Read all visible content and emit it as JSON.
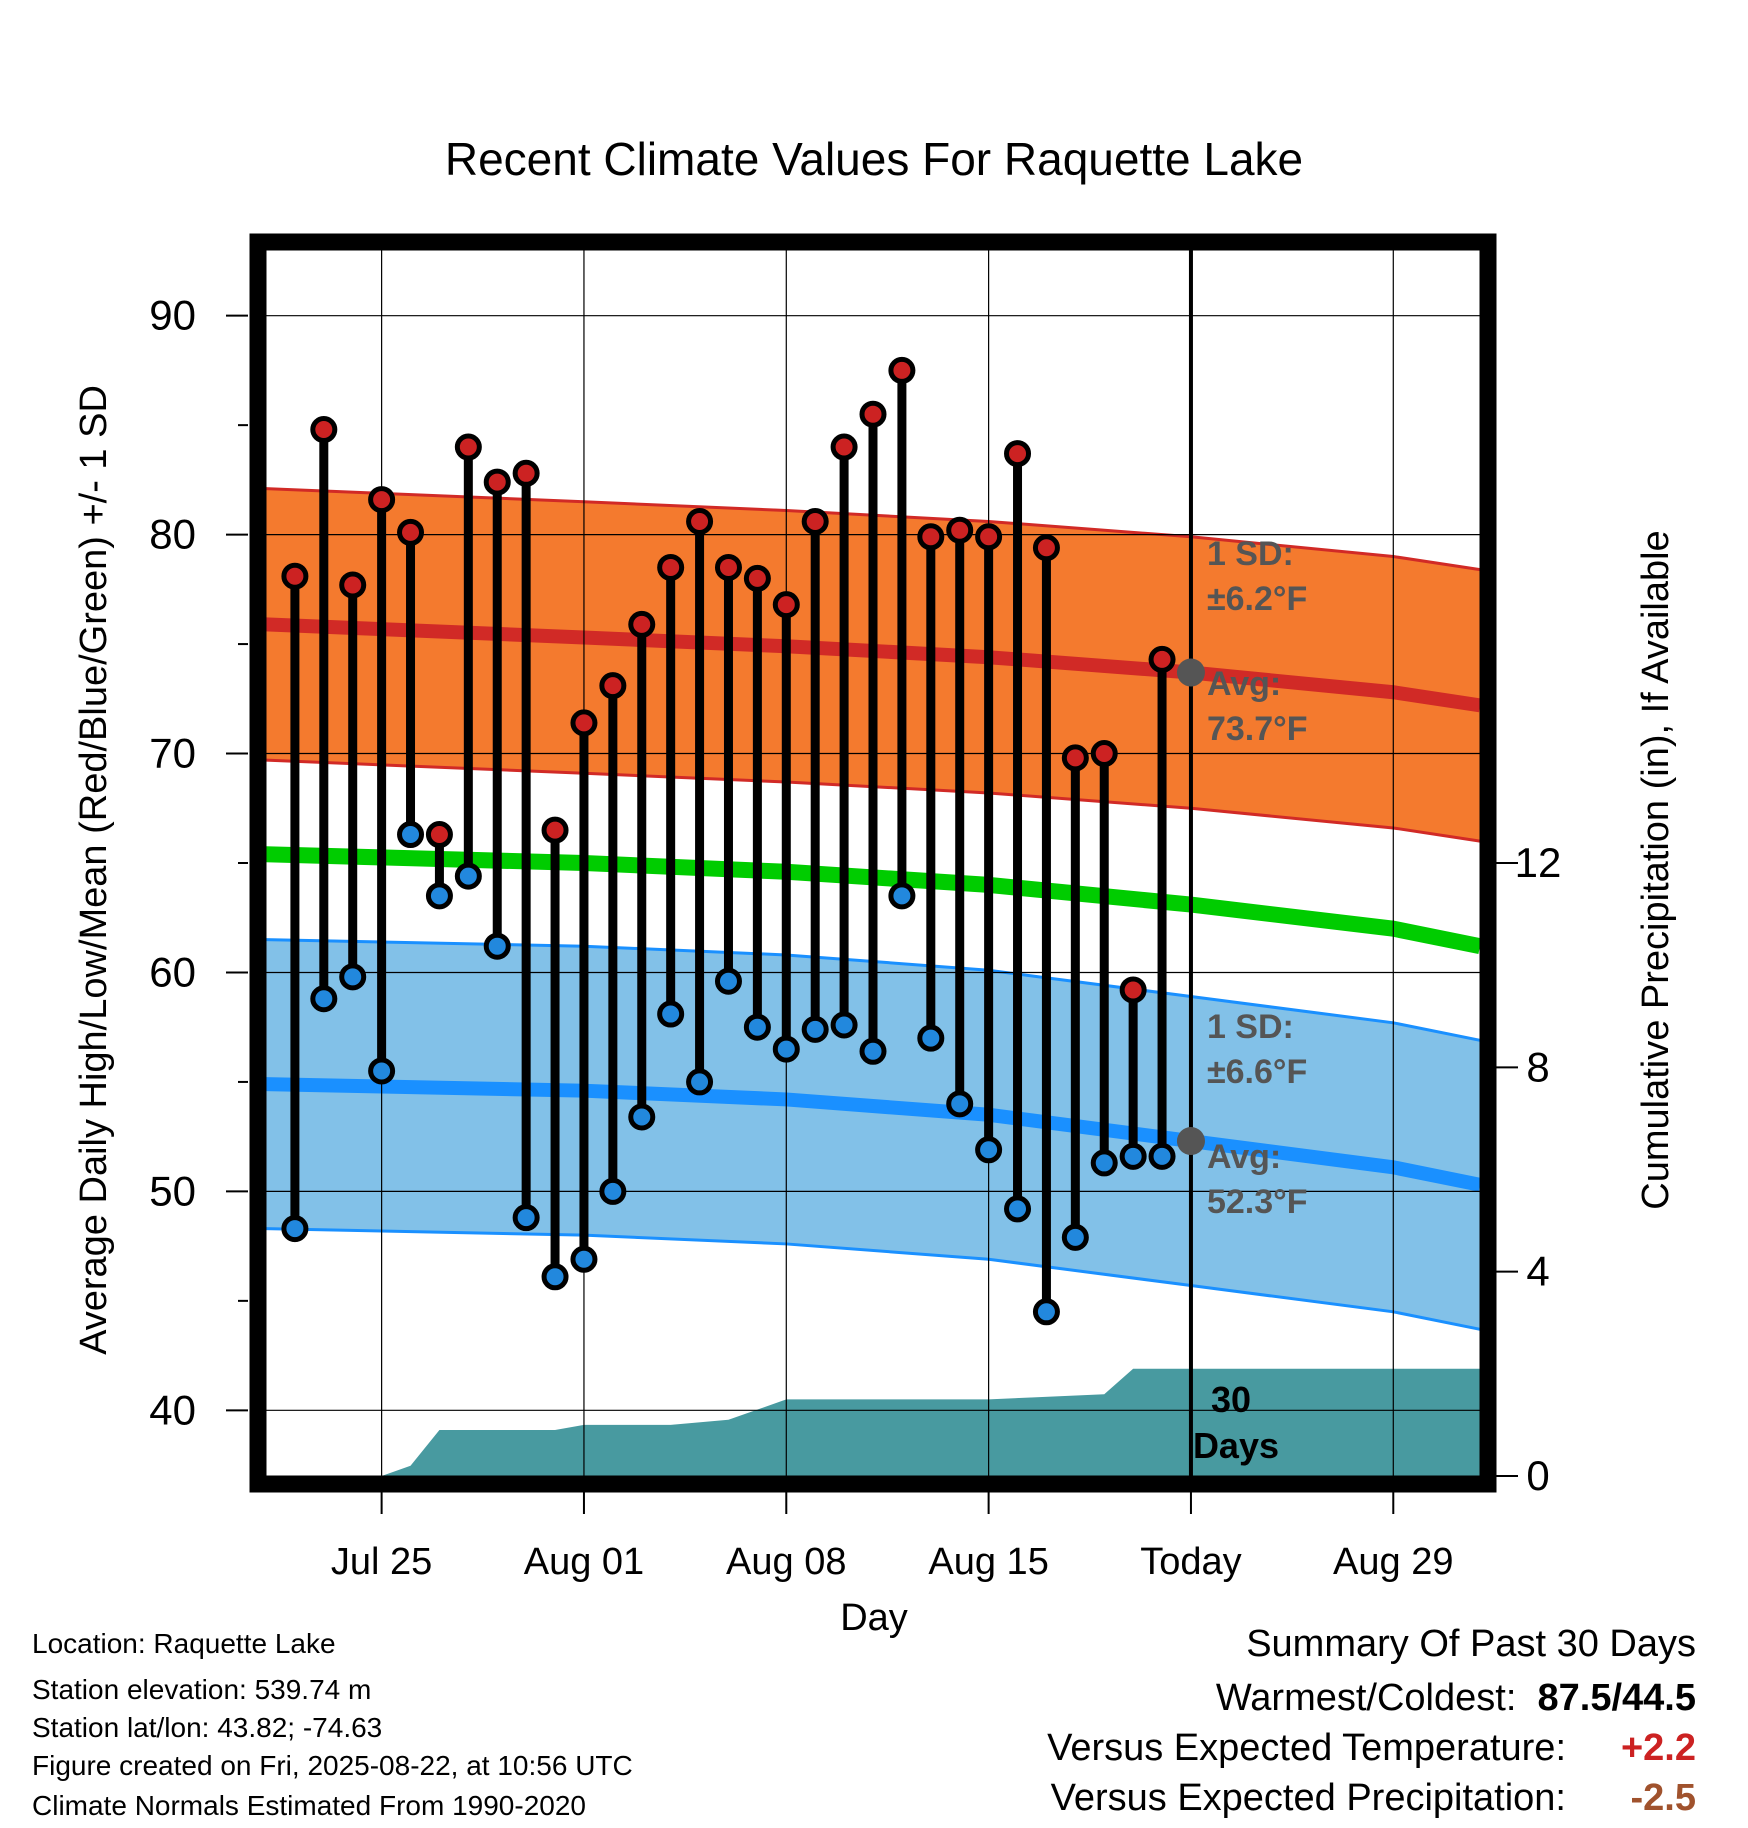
{
  "chart_data": {
    "type": "line",
    "title": "Recent Climate Values For Raquette Lake",
    "xlabel": "Day",
    "ylabel": "Average Daily High/Low/Mean (Red/Blue/Green) +/- 1 SD",
    "y2label": "Cumulative Precipitation (in), If Available",
    "x_ticks": [
      "Jul 25",
      "Aug 01",
      "Aug 08",
      "Aug 15",
      "Today",
      "Aug 29"
    ],
    "x_range": [
      "2025-07-21",
      "2025-09-01"
    ],
    "ylim": [
      37,
      93
    ],
    "y_ticks": [
      40,
      50,
      60,
      70,
      80,
      90
    ],
    "y2lim": [
      0,
      24
    ],
    "y2_ticks": [
      0,
      4,
      8,
      12
    ],
    "grid": true,
    "today": "2025-08-22",
    "series": [
      {
        "name": "High",
        "color": "#cc2222",
        "dates": [
          "2025-07-22",
          "2025-07-23",
          "2025-07-24",
          "2025-07-25",
          "2025-07-26",
          "2025-07-27",
          "2025-07-28",
          "2025-07-29",
          "2025-07-30",
          "2025-07-31",
          "2025-08-01",
          "2025-08-02",
          "2025-08-03",
          "2025-08-04",
          "2025-08-05",
          "2025-08-06",
          "2025-08-07",
          "2025-08-08",
          "2025-08-09",
          "2025-08-10",
          "2025-08-11",
          "2025-08-12",
          "2025-08-13",
          "2025-08-14",
          "2025-08-15",
          "2025-08-16",
          "2025-08-17",
          "2025-08-18",
          "2025-08-19",
          "2025-08-20",
          "2025-08-21"
        ],
        "values": [
          78.1,
          84.8,
          77.7,
          81.6,
          80.1,
          66.3,
          84.0,
          82.4,
          82.8,
          66.5,
          71.4,
          73.1,
          75.9,
          78.5,
          80.6,
          78.5,
          78.0,
          76.8,
          80.6,
          84.0,
          85.5,
          87.5,
          79.9,
          80.2,
          79.9,
          83.7,
          79.4,
          69.8,
          70.0,
          59.2,
          74.3
        ]
      },
      {
        "name": "Low",
        "color": "#2288dd",
        "dates": [
          "2025-07-22",
          "2025-07-23",
          "2025-07-24",
          "2025-07-25",
          "2025-07-26",
          "2025-07-27",
          "2025-07-28",
          "2025-07-29",
          "2025-07-30",
          "2025-07-31",
          "2025-08-01",
          "2025-08-02",
          "2025-08-03",
          "2025-08-04",
          "2025-08-05",
          "2025-08-06",
          "2025-08-07",
          "2025-08-08",
          "2025-08-09",
          "2025-08-10",
          "2025-08-11",
          "2025-08-12",
          "2025-08-13",
          "2025-08-14",
          "2025-08-15",
          "2025-08-16",
          "2025-08-17",
          "2025-08-18",
          "2025-08-19",
          "2025-08-20",
          "2025-08-21"
        ],
        "values": [
          48.3,
          58.8,
          59.8,
          55.5,
          66.3,
          63.5,
          64.4,
          61.2,
          48.8,
          46.1,
          46.9,
          50.0,
          53.4,
          58.1,
          55.0,
          59.6,
          57.5,
          56.5,
          57.4,
          57.6,
          56.4,
          63.5,
          57.0,
          54.0,
          51.9,
          49.2,
          44.5,
          47.9,
          51.3,
          51.6,
          51.6
        ]
      },
      {
        "name": "Normal High",
        "color": "#d12a26",
        "dates": [
          "2025-07-21",
          "2025-08-01",
          "2025-08-08",
          "2025-08-15",
          "2025-08-22",
          "2025-08-29",
          "2025-09-01"
        ],
        "mean": [
          75.9,
          75.3,
          74.9,
          74.4,
          73.7,
          72.8,
          72.2
        ],
        "sd": 6.2,
        "band_color": "#f47a2e"
      },
      {
        "name": "Normal Mean",
        "color": "#00cc00",
        "dates": [
          "2025-07-21",
          "2025-08-01",
          "2025-08-08",
          "2025-08-15",
          "2025-08-22",
          "2025-08-29",
          "2025-09-01"
        ],
        "mean": [
          65.4,
          65.0,
          64.6,
          64.0,
          63.1,
          62.0,
          61.2
        ]
      },
      {
        "name": "Normal Low",
        "color": "#1a90ff",
        "dates": [
          "2025-07-21",
          "2025-08-01",
          "2025-08-08",
          "2025-08-15",
          "2025-08-22",
          "2025-08-29",
          "2025-09-01"
        ],
        "mean": [
          54.9,
          54.6,
          54.2,
          53.5,
          52.3,
          51.1,
          50.3
        ],
        "sd": 6.6,
        "band_color": "#82c1e8"
      },
      {
        "name": "Cumulative Precipitation",
        "color": "#489aa0",
        "dates": [
          "2025-07-21",
          "2025-07-25",
          "2025-07-26",
          "2025-07-27",
          "2025-07-31",
          "2025-08-01",
          "2025-08-04",
          "2025-08-06",
          "2025-08-08",
          "2025-08-15",
          "2025-08-19",
          "2025-08-20",
          "2025-09-01"
        ],
        "values": [
          0,
          0,
          0.2,
          0.9,
          0.9,
          1.0,
          1.0,
          1.1,
          1.5,
          1.5,
          1.6,
          2.1,
          2.1
        ]
      }
    ],
    "annotations": {
      "high_sd_label": [
        "1 SD:",
        "±6.2°F"
      ],
      "high_avg_label": [
        "Avg:",
        "73.7°F"
      ],
      "low_sd_label": [
        "1 SD:",
        "±6.6°F"
      ],
      "low_avg_label": [
        "Avg:",
        "52.3°F"
      ],
      "precip_label": [
        "30",
        "Days"
      ],
      "label_color": "#555555",
      "today_marker_color": "#555555"
    }
  },
  "info": {
    "location": "Location: Raquette Lake",
    "elevation": "Station elevation: 539.74 m",
    "latlon": "Station lat/lon: 43.82; -74.63",
    "created": "Figure created on Fri, 2025-08-22, at 10:56 UTC",
    "normals": "Climate Normals Estimated From 1990-2020"
  },
  "summary": {
    "title": "Summary Of Past 30 Days",
    "warmest_label": "Warmest/Coldest:",
    "warmest_value": "87.5/44.5",
    "temp_label": "Versus Expected Temperature:",
    "temp_value": "+2.2",
    "temp_color": "#cc2222",
    "precip_label": "Versus Expected Precipitation:",
    "precip_value": "-2.5",
    "precip_color": "#a0522d"
  }
}
